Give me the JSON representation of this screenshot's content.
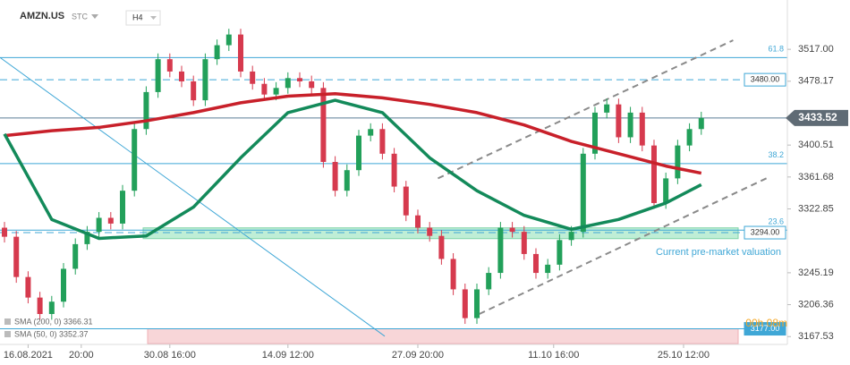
{
  "chart_data": {
    "type": "candlestick",
    "title": "AMZN.US",
    "price_type": "STC",
    "timeframe": "H4",
    "xlim": [
      -0.38,
      66.29
    ],
    "ylim": [
      3158,
      3577
    ],
    "xticks": [
      {
        "value": 2,
        "label": "16.08.2021"
      },
      {
        "value": 6.5,
        "label": "20:00"
      },
      {
        "value": 14,
        "label": "30.08 16:00"
      },
      {
        "value": 24,
        "label": "14.09 12:00"
      },
      {
        "value": 35,
        "label": "27.09 20:00"
      },
      {
        "value": 46.5,
        "label": "11.10 16:00"
      },
      {
        "value": 57.5,
        "label": "25.10 12:00"
      }
    ],
    "yticks": [
      {
        "value": 3517,
        "label": "3517.00"
      },
      {
        "value": 3478.17,
        "label": "3478.17"
      },
      {
        "value": 3400.51,
        "label": "3400.51"
      },
      {
        "value": 3361.68,
        "label": "3361.68"
      },
      {
        "value": 3322.85,
        "label": "3322.85"
      },
      {
        "value": 3245.19,
        "label": "3245.19"
      },
      {
        "value": 3206.36,
        "label": "3206.36"
      },
      {
        "value": 3167.53,
        "label": "3167.53"
      }
    ],
    "up_color": "#22a05a",
    "down_color": "#d63a4e",
    "open": [
      3300,
      3289,
      3240,
      3215,
      3195,
      3210,
      3250,
      3280,
      3295,
      3312,
      3305,
      3345,
      3420,
      3465,
      3505,
      3490,
      3478,
      3455,
      3505,
      3522,
      3535,
      3490,
      3475,
      3462,
      3470,
      3482,
      3478,
      3470,
      3380,
      3345,
      3370,
      3412,
      3420,
      3390,
      3350,
      3315,
      3300,
      3290,
      3262,
      3225,
      3190,
      3225,
      3245,
      3300,
      3295,
      3268,
      3245,
      3255,
      3285,
      3295,
      3390,
      3440,
      3450,
      3410,
      3440,
      3400,
      3330,
      3360,
      3400,
      3420
    ],
    "high": [
      3307,
      3296,
      3247,
      3222,
      3217,
      3257,
      3287,
      3302,
      3319,
      3319,
      3352,
      3427,
      3472,
      3512,
      3512,
      3497,
      3485,
      3512,
      3529,
      3542,
      3542,
      3497,
      3482,
      3477,
      3489,
      3489,
      3485,
      3477,
      3387,
      3377,
      3419,
      3427,
      3427,
      3397,
      3357,
      3322,
      3307,
      3297,
      3269,
      3232,
      3232,
      3252,
      3307,
      3307,
      3302,
      3275,
      3262,
      3292,
      3302,
      3397,
      3447,
      3457,
      3457,
      3447,
      3447,
      3407,
      3367,
      3407,
      3427,
      3441
    ],
    "low": [
      3282,
      3233,
      3208,
      3188,
      3188,
      3203,
      3243,
      3273,
      3288,
      3298,
      3298,
      3338,
      3413,
      3458,
      3483,
      3471,
      3448,
      3448,
      3498,
      3515,
      3483,
      3468,
      3455,
      3455,
      3463,
      3471,
      3463,
      3373,
      3338,
      3338,
      3363,
      3405,
      3383,
      3343,
      3308,
      3293,
      3283,
      3255,
      3218,
      3183,
      3183,
      3218,
      3238,
      3288,
      3261,
      3238,
      3238,
      3248,
      3278,
      3288,
      3383,
      3433,
      3403,
      3403,
      3393,
      3323,
      3323,
      3353,
      3393,
      3413
    ],
    "close": [
      3289,
      3240,
      3215,
      3195,
      3210,
      3250,
      3280,
      3295,
      3312,
      3305,
      3345,
      3420,
      3465,
      3505,
      3490,
      3478,
      3455,
      3505,
      3522,
      3535,
      3490,
      3475,
      3462,
      3470,
      3482,
      3478,
      3470,
      3380,
      3345,
      3370,
      3412,
      3420,
      3390,
      3350,
      3315,
      3300,
      3290,
      3262,
      3225,
      3190,
      3225,
      3245,
      3300,
      3295,
      3268,
      3245,
      3255,
      3285,
      3295,
      3390,
      3440,
      3450,
      3410,
      3440,
      3400,
      3330,
      3360,
      3400,
      3420,
      3433.52
    ],
    "series": [
      {
        "name": "SMA (200, 0) 3366.31",
        "color": "#c8202a",
        "x": [
          0,
          4,
          8,
          12,
          16,
          20,
          24,
          28,
          32,
          36,
          40,
          44,
          48,
          52,
          56,
          59
        ],
        "values": [
          3412,
          3418,
          3422,
          3430,
          3440,
          3452,
          3460,
          3463,
          3458,
          3450,
          3440,
          3425,
          3405,
          3390,
          3375,
          3366.31
        ]
      },
      {
        "name": "SMA (50, 0) 3352.37",
        "color": "#138a5a",
        "x": [
          0,
          4,
          8,
          12,
          16,
          20,
          24,
          28,
          32,
          36,
          40,
          44,
          48,
          52,
          56,
          59
        ],
        "values": [
          3414,
          3310,
          3287,
          3290,
          3325,
          3385,
          3440,
          3455,
          3440,
          3385,
          3345,
          3315,
          3298,
          3310,
          3330,
          3352.37
        ]
      }
    ],
    "levels": [
      {
        "value": 3507,
        "label": "61.8"
      },
      {
        "value": 3378,
        "label": "38.2"
      },
      {
        "value": 3297,
        "label": "23.6"
      }
    ],
    "price_tags": [
      {
        "value": 3480,
        "label": "3480.00",
        "style": "dashed"
      },
      {
        "value": 3294,
        "label": "3294.00",
        "style": "dashed"
      },
      {
        "value": 3177,
        "label": "3177.00",
        "style": "solid"
      }
    ],
    "current_price": {
      "value": 3433.52,
      "label": "3433.52"
    },
    "zones": [
      {
        "range": [
          3286.7,
          3299.8
        ],
        "color": "#bfeed6"
      },
      {
        "range": [
          3159,
          3177
        ],
        "color": "#f8d6d8"
      }
    ],
    "trendlines": [
      {
        "x": [
          -0.38,
          32.2
        ],
        "y": [
          3507,
          3168
        ],
        "color": "#3fa7d6",
        "dashed": false
      },
      {
        "x": [
          36.7,
          61.7
        ],
        "y": [
          3360,
          3528
        ],
        "color": "#8a8a8a",
        "dashed": true
      },
      {
        "x": [
          40.2,
          64.8
        ],
        "y": [
          3195,
          3362
        ],
        "color": "#8a8a8a",
        "dashed": true
      }
    ],
    "annotation": "Current pre-market valuation",
    "countdown": "00h 08m"
  }
}
